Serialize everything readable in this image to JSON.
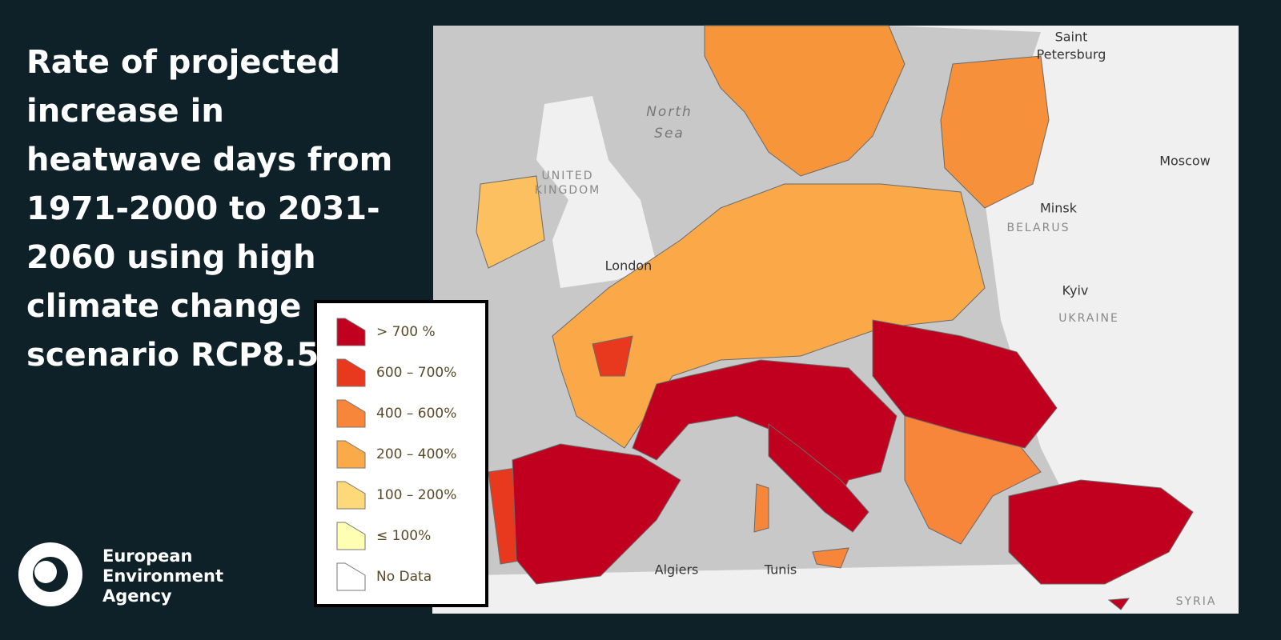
{
  "title": "Rate of projected increase in heatwave days from 1971-2000 to 2031-2060 using high climate change scenario RCP8.5",
  "legend": {
    "items": [
      {
        "label": "> 700 %",
        "color": "#c0001e"
      },
      {
        "label": "600 – 700%",
        "color": "#e8391e"
      },
      {
        "label": "400 – 600%",
        "color": "#f7853a"
      },
      {
        "label": "200 – 400%",
        "color": "#fbaa4a"
      },
      {
        "label": "100 – 200%",
        "color": "#fed97a"
      },
      {
        "label": "≤ 100%",
        "color": "#ffffb3"
      },
      {
        "label": "No Data",
        "color": "#ffffff"
      }
    ]
  },
  "map_labels": [
    {
      "text": "Saint",
      "kind": "city"
    },
    {
      "text": "Petersburg",
      "kind": "city"
    },
    {
      "text": "North",
      "kind": "sea"
    },
    {
      "text": "Sea",
      "kind": "sea"
    },
    {
      "text": "UNITED",
      "kind": "country"
    },
    {
      "text": "KINGDOM",
      "kind": "country"
    },
    {
      "text": "London",
      "kind": "city"
    },
    {
      "text": "Moscow",
      "kind": "city"
    },
    {
      "text": "Minsk",
      "kind": "city"
    },
    {
      "text": "BELARUS",
      "kind": "country"
    },
    {
      "text": "Kyiv",
      "kind": "city"
    },
    {
      "text": "UKRAINE",
      "kind": "country"
    },
    {
      "text": "Algiers",
      "kind": "city"
    },
    {
      "text": "Tunis",
      "kind": "city"
    },
    {
      "text": "SYRIA",
      "kind": "country"
    }
  ],
  "logo": {
    "lines": [
      "European",
      "Environment",
      "Agency"
    ]
  }
}
